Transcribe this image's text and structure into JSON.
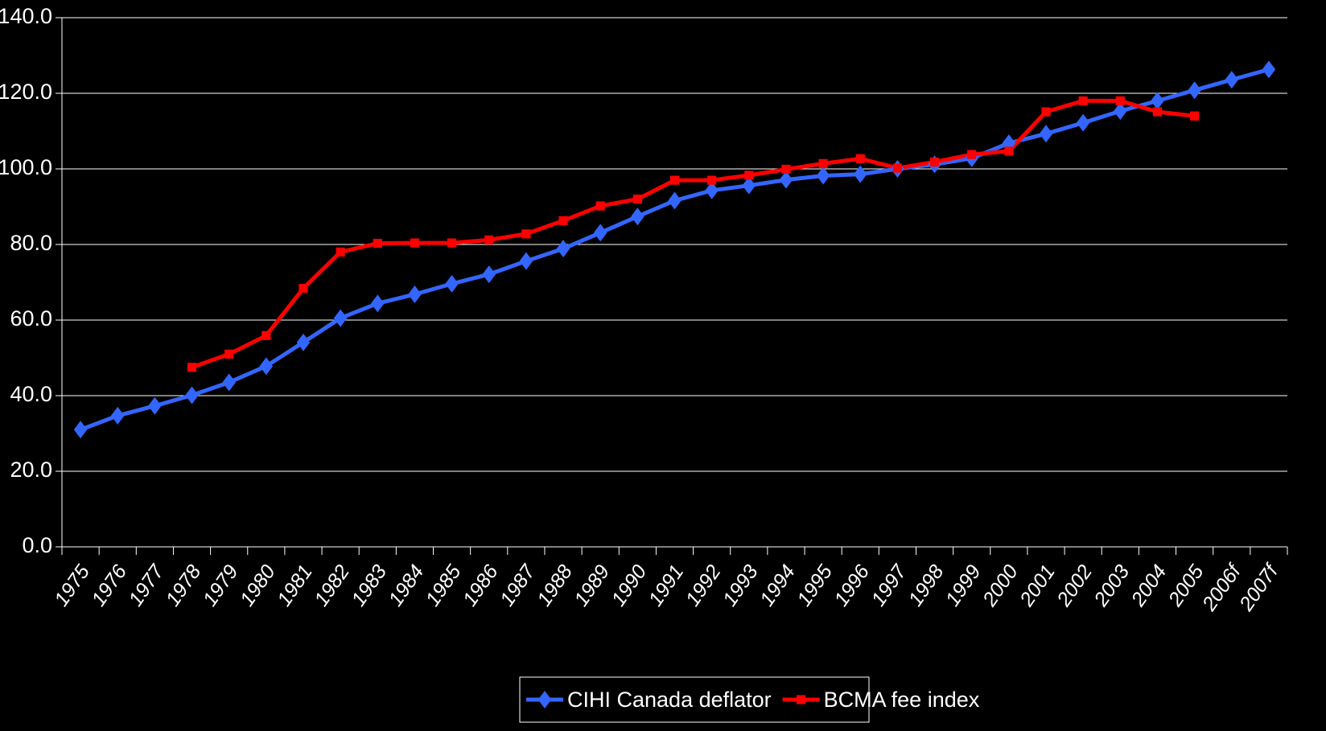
{
  "chart_data": {
    "type": "line",
    "title": "",
    "xlabel": "",
    "ylabel": "",
    "ylim": [
      0,
      140
    ],
    "y_ticks": [
      "0.0",
      "20.0",
      "40.0",
      "60.0",
      "80.0",
      "100.0",
      "120.0",
      "140.0"
    ],
    "categories": [
      "1975",
      "1976",
      "1977",
      "1978",
      "1979",
      "1980",
      "1981",
      "1982",
      "1983",
      "1984",
      "1985",
      "1986",
      "1987",
      "1988",
      "1989",
      "1990",
      "1991",
      "1992",
      "1993",
      "1994",
      "1995",
      "1996",
      "1997",
      "1998",
      "1999",
      "2000",
      "2001",
      "2002",
      "2003",
      "2004",
      "2005",
      "2006f",
      "2007f"
    ],
    "grid": "horizontal",
    "legend_position": "bottom",
    "background_color": "#000000",
    "text_color": "#ffffff",
    "series": [
      {
        "name": "CIHI Canada deflator",
        "color": "#3366ff",
        "marker": "diamond",
        "values": [
          31,
          34.7,
          37.3,
          40.1,
          43.5,
          47.8,
          54.1,
          60.5,
          64.4,
          66.8,
          69.6,
          72.1,
          75.6,
          78.9,
          83.1,
          87.4,
          91.6,
          94.3,
          95.6,
          97.1,
          98.2,
          98.6,
          100.0,
          101.2,
          102.8,
          106.8,
          109.3,
          112.2,
          115.3,
          118.0,
          120.8,
          123.6,
          126.3
        ]
      },
      {
        "name": "BCMA fee index",
        "color": "#ff0000",
        "marker": "square",
        "values": [
          null,
          null,
          null,
          47.5,
          51.0,
          55.9,
          68.4,
          78.0,
          80.3,
          80.4,
          80.4,
          81.2,
          82.8,
          86.3,
          90.2,
          92.0,
          97.0,
          97.0,
          98.3,
          99.9,
          101.4,
          102.7,
          100.2,
          101.8,
          103.8,
          104.7,
          115.1,
          118.0,
          118.0,
          115.1,
          114.0,
          null,
          null
        ]
      }
    ]
  }
}
